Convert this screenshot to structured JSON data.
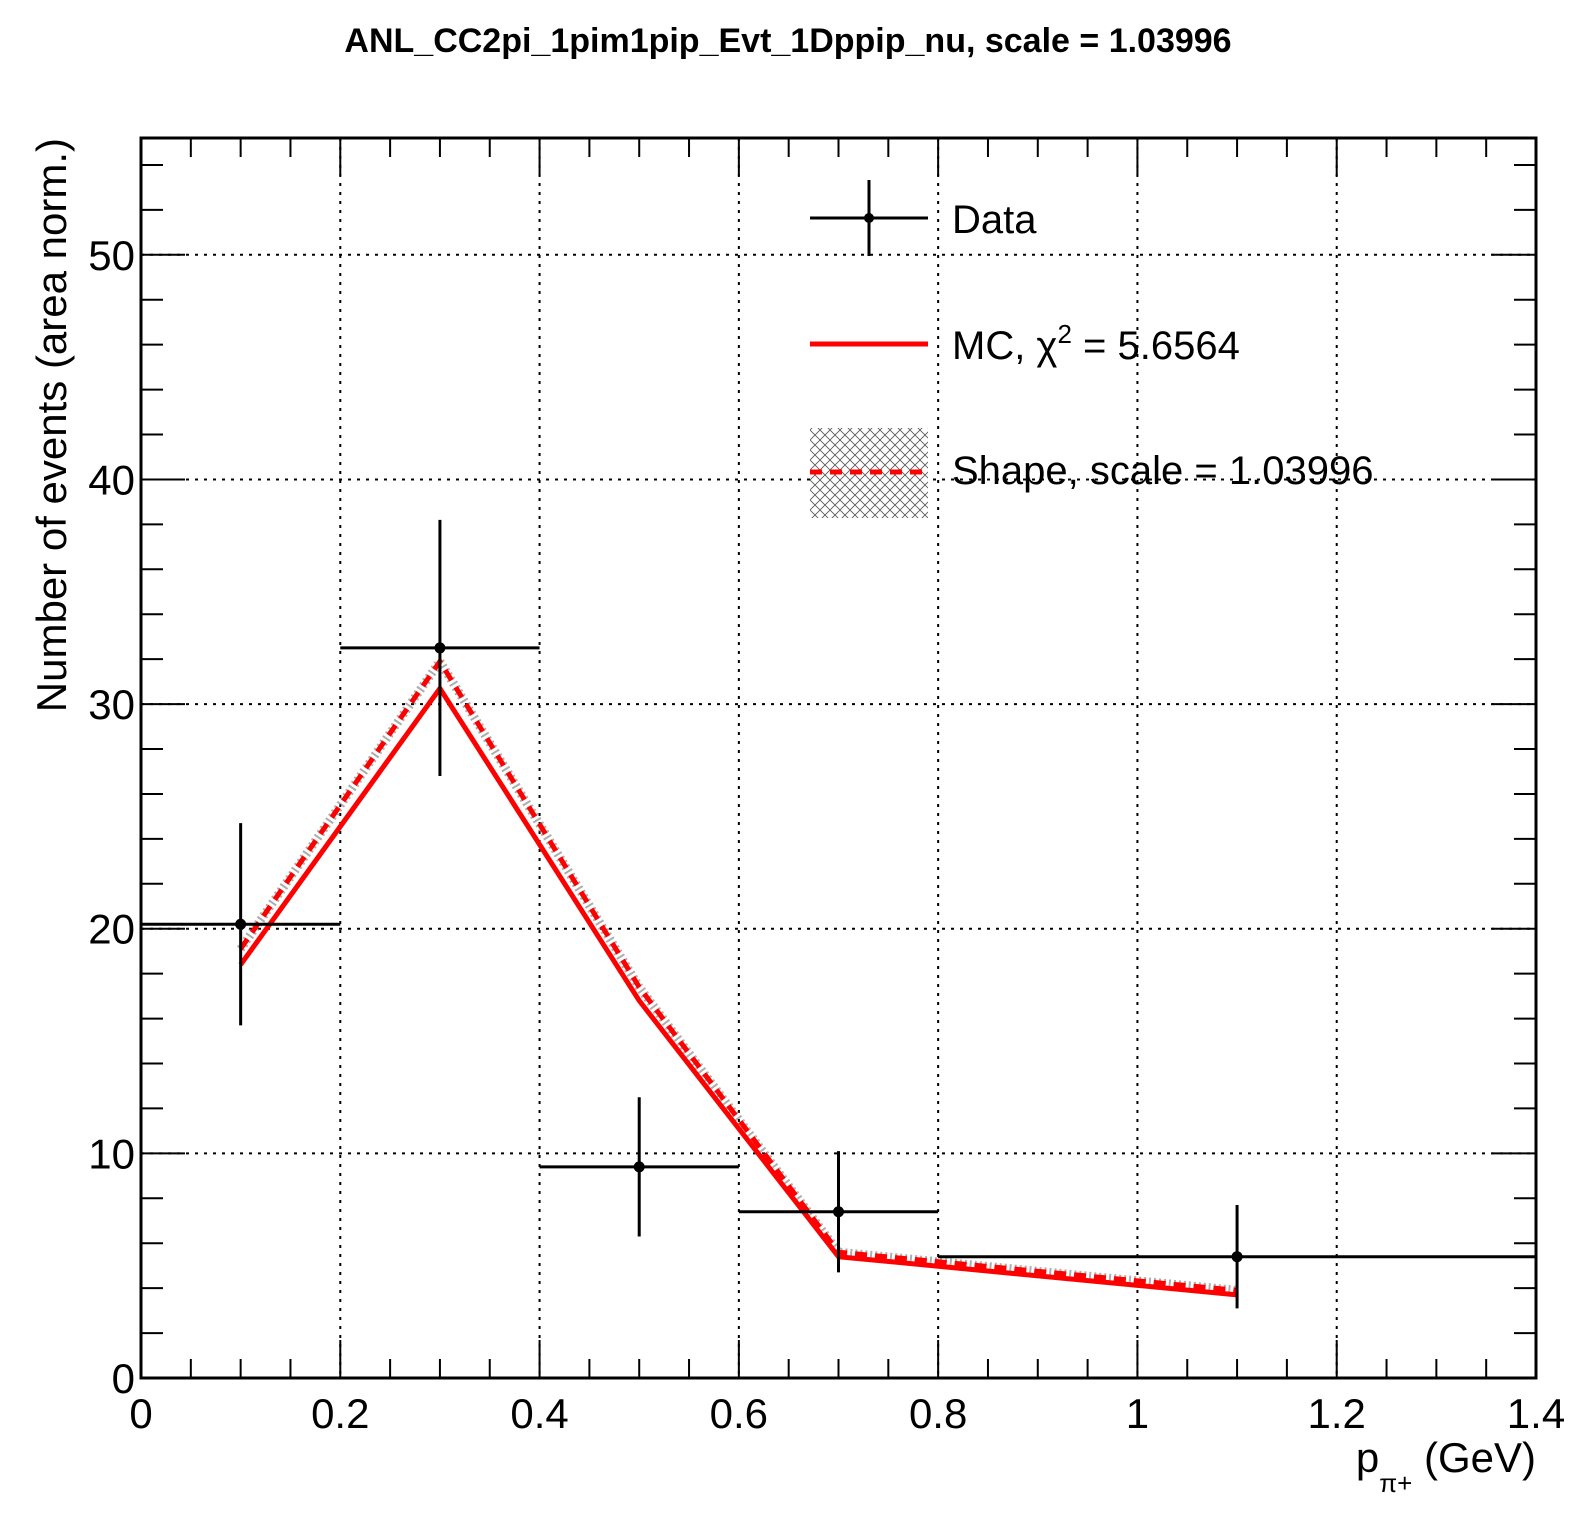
{
  "chart_data": {
    "type": "line",
    "title": "ANL_CC2pi_1pim1pip_Evt_1Dppip_nu, scale = 1.03996",
    "xlabel": "p",
    "xlabel_sub": "π+",
    "xlabel_unit": " (GeV)",
    "ylabel": "Number of events (area norm.)",
    "xlim": [
      0,
      1.4
    ],
    "ylim": [
      0,
      55.2
    ],
    "grid": true,
    "legend_placement": "top-right",
    "x_ticks": [
      {
        "value": 0,
        "label": "0"
      },
      {
        "value": 0.2,
        "label": "0.2"
      },
      {
        "value": 0.4,
        "label": "0.4"
      },
      {
        "value": 0.6,
        "label": "0.6"
      },
      {
        "value": 0.8,
        "label": "0.8"
      },
      {
        "value": 1.0,
        "label": "1"
      },
      {
        "value": 1.2,
        "label": "1.2"
      },
      {
        "value": 1.4,
        "label": "1.4"
      }
    ],
    "y_ticks": [
      {
        "value": 0,
        "label": "0"
      },
      {
        "value": 10,
        "label": "10"
      },
      {
        "value": 20,
        "label": "20"
      },
      {
        "value": 30,
        "label": "30"
      },
      {
        "value": 40,
        "label": "40"
      },
      {
        "value": 50,
        "label": "50"
      }
    ],
    "series": [
      {
        "name": "Data",
        "kind": "errorbar",
        "color": "#000000",
        "points": [
          {
            "x": 0.1,
            "xlo": 0.0,
            "xhi": 0.2,
            "y": 20.2,
            "ylo": 15.7,
            "yhi": 24.7
          },
          {
            "x": 0.3,
            "xlo": 0.2,
            "xhi": 0.4,
            "y": 32.5,
            "ylo": 26.8,
            "yhi": 38.2
          },
          {
            "x": 0.5,
            "xlo": 0.4,
            "xhi": 0.6,
            "y": 9.4,
            "ylo": 6.3,
            "yhi": 12.5
          },
          {
            "x": 0.7,
            "xlo": 0.6,
            "xhi": 0.8,
            "y": 7.4,
            "ylo": 4.7,
            "yhi": 10.1
          },
          {
            "x": 1.1,
            "xlo": 0.8,
            "xhi": 1.4,
            "y": 5.4,
            "ylo": 3.1,
            "yhi": 7.7
          }
        ]
      },
      {
        "name": "MC, χ",
        "legend_sup": "2",
        "legend_tail": " = 5.6564",
        "kind": "line",
        "color": "#ff0000",
        "x": [
          0.1,
          0.3,
          0.5,
          0.7,
          1.1
        ],
        "y": [
          18.4,
          30.7,
          16.8,
          5.4,
          3.7
        ]
      },
      {
        "name": "Shape, scale = 1.03996",
        "kind": "dashed-line-band",
        "color": "#ff0000",
        "x": [
          0.1,
          0.3,
          0.5,
          0.7,
          1.1
        ],
        "y": [
          19.1,
          31.9,
          17.4,
          5.6,
          3.9
        ]
      }
    ]
  }
}
